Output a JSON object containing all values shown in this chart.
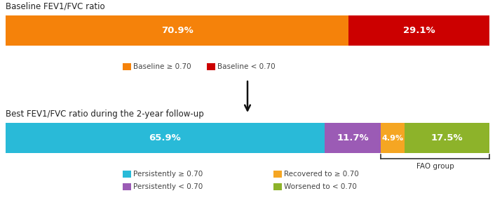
{
  "bar1_labels": [
    "70.9%",
    "29.1%"
  ],
  "bar1_values": [
    70.9,
    29.1
  ],
  "bar1_colors": [
    "#F5820A",
    "#CC0000"
  ],
  "bar1_legend": [
    "Baseline ≥ 0.70",
    "Baseline < 0.70"
  ],
  "bar2_labels": [
    "65.9%",
    "11.7%",
    "4.9%",
    "17.5%"
  ],
  "bar2_values": [
    65.9,
    11.7,
    4.9,
    17.5
  ],
  "bar2_colors": [
    "#29BAD8",
    "#9B5BB5",
    "#F5A623",
    "#8DB32A"
  ],
  "bar2_legend": [
    "Persistently ≥ 0.70",
    "Persistently < 0.70",
    "Recovered to ≥ 0.70",
    "Worsened to < 0.70"
  ],
  "title1": "Baseline FEV1/FVC ratio",
  "title2": "Best FEV1/FVC ratio during the 2-year follow-up",
  "fao_label": "FAO group",
  "text_color_white": "#FFFFFF",
  "background_color": "#FFFFFF"
}
